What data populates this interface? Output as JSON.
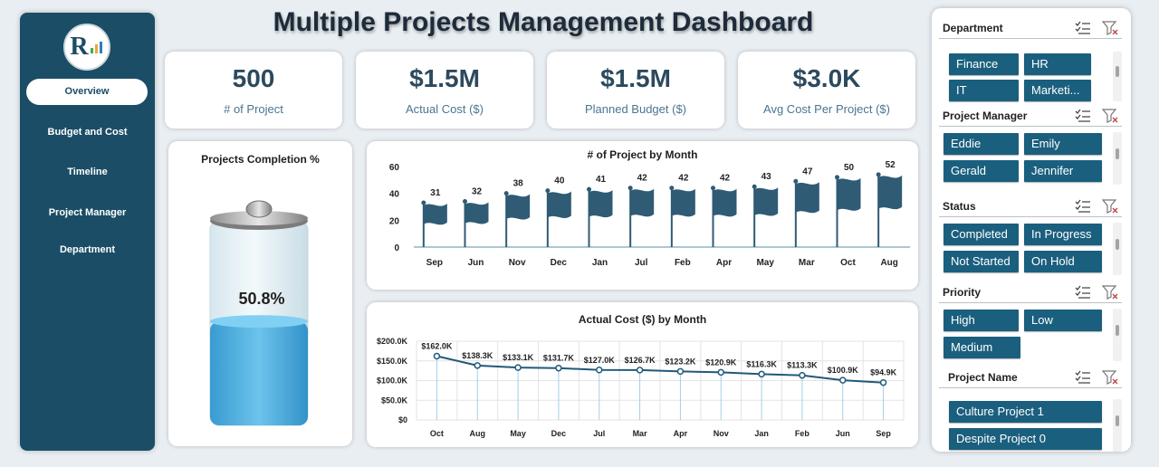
{
  "title": "Multiple Projects Management Dashboard",
  "logo": {
    "letter": "R"
  },
  "nav": [
    {
      "label": "Overview",
      "active": true
    },
    {
      "label": "Budget and Cost",
      "active": false
    },
    {
      "label": "Timeline",
      "active": false
    },
    {
      "label": "Project Manager",
      "active": false
    },
    {
      "label": "Department",
      "active": false
    }
  ],
  "kpis": [
    {
      "value": "500",
      "label": "# of Project"
    },
    {
      "value": "$1.5M",
      "label": "Actual Cost ($)"
    },
    {
      "value": "$1.5M",
      "label": "Planned Budget ($)"
    },
    {
      "value": "$3.0K",
      "label": "Avg Cost Per Project  ($)"
    }
  ],
  "completion": {
    "title": "Projects Completion %",
    "value_label": "50.8%",
    "fraction": 0.508
  },
  "slicers": [
    {
      "title": "Department",
      "items": [
        "Finance",
        "HR",
        "IT",
        "Marketi..."
      ]
    },
    {
      "title": "Project Manager",
      "items": [
        "Eddie",
        "Emily",
        "Gerald",
        "Jennifer"
      ]
    },
    {
      "title": "Status",
      "items": [
        "Completed",
        "In Progress",
        "Not Started",
        "On Hold"
      ]
    },
    {
      "title": "Priority",
      "items": [
        "High",
        "Low",
        "Medium"
      ]
    },
    {
      "title": "Project Name",
      "items": [
        "Culture Project 1",
        "Despite Project 0"
      ]
    }
  ],
  "colors": {
    "sidebar": "#1b4d66",
    "chip": "#1b5f7e",
    "flag": "#2f5b74",
    "line": "#21597a"
  },
  "chart_data": [
    {
      "type": "bar",
      "title": "# of Project  by Month",
      "categories": [
        "Sep",
        "Jun",
        "Nov",
        "Dec",
        "Jan",
        "Jul",
        "Feb",
        "Apr",
        "May",
        "Mar",
        "Oct",
        "Aug"
      ],
      "values": [
        31,
        32,
        38,
        40,
        41,
        42,
        42,
        42,
        43,
        47,
        50,
        52
      ],
      "value_labels": [
        "31",
        "32",
        "38",
        "40",
        "41",
        "42",
        "42",
        "42",
        "43",
        "47",
        "50",
        "52"
      ],
      "yticks": [
        "0",
        "20",
        "40",
        "60"
      ],
      "ylim": [
        0,
        60
      ]
    },
    {
      "type": "line",
      "title": "Actual Cost ($) by Month",
      "categories": [
        "Oct",
        "Aug",
        "May",
        "Dec",
        "Jul",
        "Mar",
        "Apr",
        "Nov",
        "Jan",
        "Feb",
        "Jun",
        "Sep"
      ],
      "values": [
        162.0,
        138.3,
        133.1,
        131.7,
        127.0,
        126.7,
        123.2,
        120.9,
        116.3,
        113.3,
        100.9,
        94.9
      ],
      "value_labels": [
        "$162.0K",
        "$138.3K",
        "$133.1K",
        "$131.7K",
        "$127.0K",
        "$126.7K",
        "$123.2K",
        "$120.9K",
        "$116.3K",
        "$113.3K",
        "$100.9K",
        "$94.9K"
      ],
      "yticks": [
        "$0",
        "$50.0K",
        "$100.0K",
        "$150.0K",
        "$200.0K"
      ],
      "ylim": [
        0,
        200
      ]
    }
  ]
}
